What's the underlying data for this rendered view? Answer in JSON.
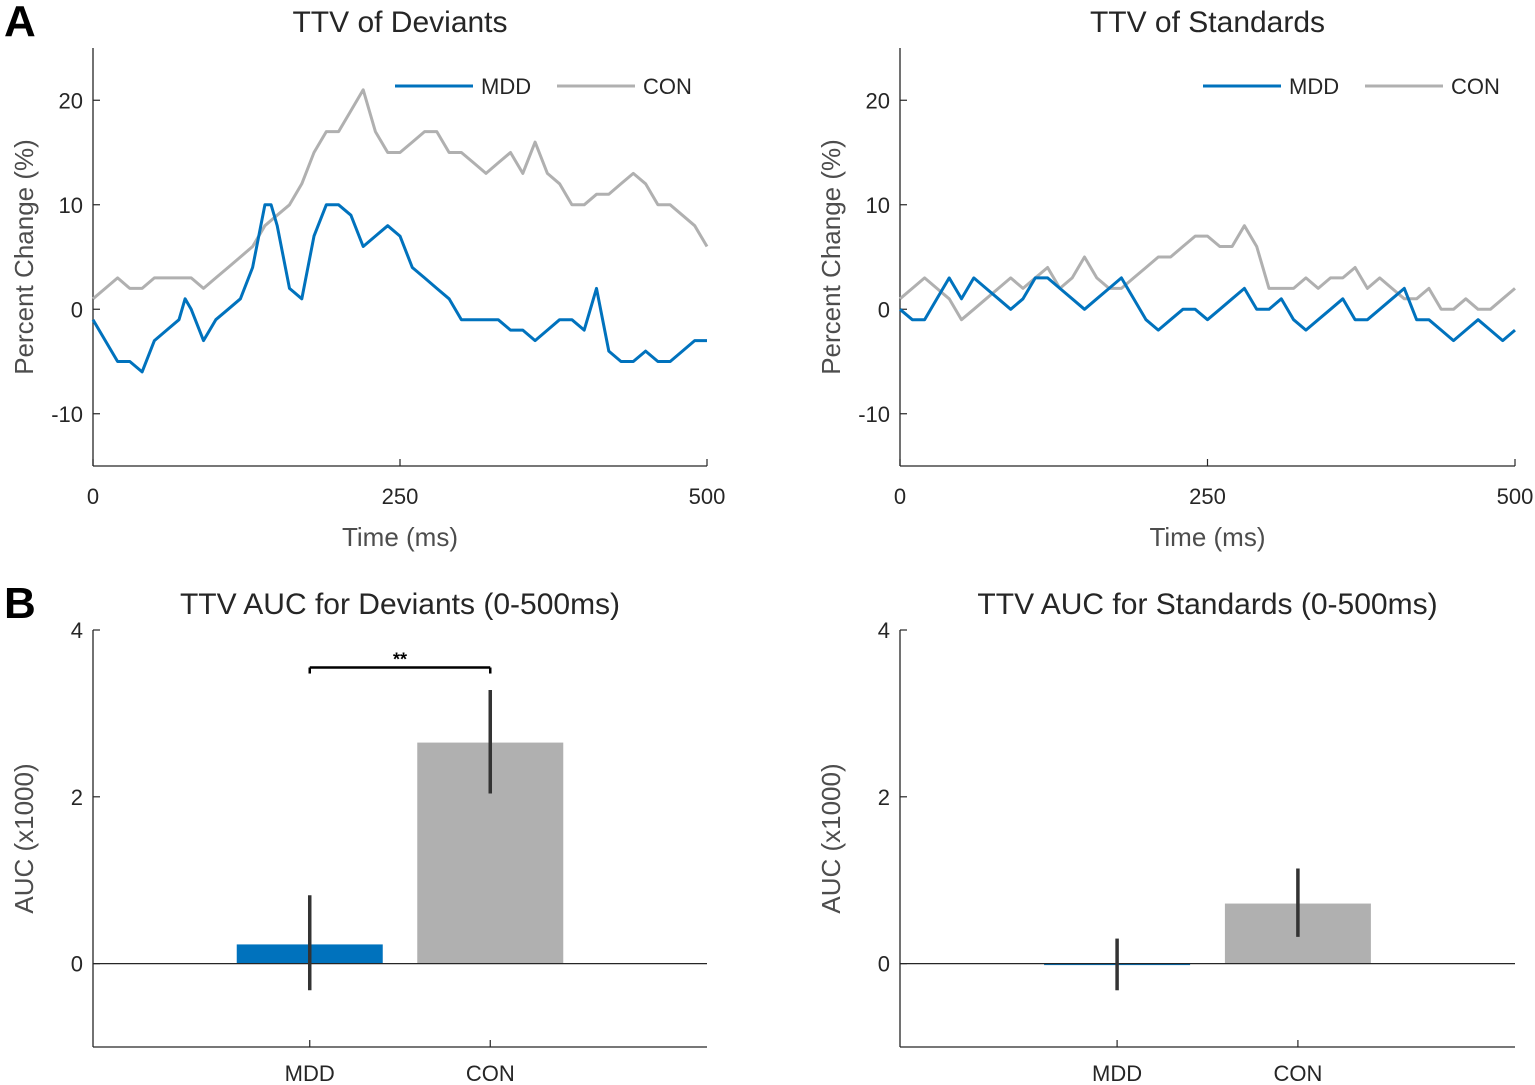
{
  "colors": {
    "mdd": "#0072bd",
    "con": "#b0b0b0",
    "axis": "#262626",
    "err": "#333333"
  },
  "panel_labels": [
    "A",
    "B"
  ],
  "chart_data": [
    {
      "type": "line",
      "id": "ttv-dev",
      "title": "TTV of Deviants",
      "xlabel": "Time (ms)",
      "ylabel": "Percent Change (%)",
      "xlim": [
        0,
        500
      ],
      "ylim": [
        -15,
        25
      ],
      "xticks": [
        0,
        250,
        500
      ],
      "yticks": [
        -10,
        0,
        10,
        20
      ],
      "legend": [
        "MDD",
        "CON"
      ],
      "legend_position": "top-right",
      "series": [
        {
          "name": "MDD",
          "color": "#0072bd",
          "x": [
            0,
            10,
            20,
            30,
            40,
            50,
            60,
            70,
            75,
            80,
            90,
            100,
            110,
            120,
            130,
            140,
            145,
            150,
            160,
            170,
            180,
            190,
            200,
            210,
            220,
            230,
            240,
            250,
            260,
            270,
            280,
            290,
            300,
            310,
            320,
            330,
            340,
            350,
            360,
            370,
            380,
            390,
            400,
            410,
            420,
            430,
            440,
            450,
            460,
            470,
            480,
            490,
            500
          ],
          "y": [
            -1,
            -3,
            -5,
            -5,
            -6,
            -3,
            -2,
            -1,
            1,
            0,
            -3,
            -1,
            0,
            1,
            4,
            10,
            10,
            8,
            2,
            1,
            7,
            10,
            10,
            9,
            6,
            7,
            8,
            7,
            4,
            3,
            2,
            1,
            -1,
            -1,
            -1,
            -1,
            -2,
            -2,
            -3,
            -2,
            -1,
            -1,
            -2,
            2,
            -4,
            -5,
            -5,
            -4,
            -5,
            -5,
            -4,
            -3,
            -3
          ]
        },
        {
          "name": "CON",
          "color": "#b0b0b0",
          "x": [
            0,
            10,
            20,
            30,
            40,
            50,
            60,
            70,
            80,
            90,
            100,
            110,
            120,
            130,
            140,
            150,
            160,
            170,
            180,
            190,
            200,
            210,
            220,
            230,
            240,
            250,
            260,
            270,
            280,
            290,
            300,
            310,
            320,
            330,
            340,
            350,
            360,
            370,
            380,
            390,
            400,
            410,
            420,
            430,
            440,
            450,
            460,
            470,
            480,
            490,
            500
          ],
          "y": [
            1,
            2,
            3,
            2,
            2,
            3,
            3,
            3,
            3,
            2,
            3,
            4,
            5,
            6,
            8,
            9,
            10,
            12,
            15,
            17,
            17,
            19,
            21,
            17,
            15,
            15,
            16,
            17,
            17,
            15,
            15,
            14,
            13,
            14,
            15,
            13,
            16,
            13,
            12,
            10,
            10,
            11,
            11,
            12,
            13,
            12,
            10,
            10,
            9,
            8,
            6
          ]
        }
      ]
    },
    {
      "type": "line",
      "id": "ttv-std",
      "title": "TTV of Standards",
      "xlabel": "Time (ms)",
      "ylabel": "Percent Change (%)",
      "xlim": [
        0,
        500
      ],
      "ylim": [
        -15,
        25
      ],
      "xticks": [
        0,
        250,
        500
      ],
      "yticks": [
        -10,
        0,
        10,
        20
      ],
      "legend": [
        "MDD",
        "CON"
      ],
      "legend_position": "top-right",
      "series": [
        {
          "name": "MDD",
          "color": "#0072bd",
          "x": [
            0,
            10,
            20,
            30,
            40,
            50,
            60,
            70,
            80,
            90,
            100,
            110,
            120,
            130,
            140,
            150,
            160,
            170,
            180,
            190,
            200,
            210,
            220,
            230,
            240,
            250,
            260,
            270,
            280,
            290,
            300,
            310,
            320,
            330,
            340,
            350,
            360,
            370,
            380,
            390,
            400,
            410,
            420,
            430,
            440,
            450,
            460,
            470,
            480,
            490,
            500
          ],
          "y": [
            0,
            -1,
            -1,
            1,
            3,
            1,
            3,
            2,
            1,
            0,
            1,
            3,
            3,
            2,
            1,
            0,
            1,
            2,
            3,
            1,
            -1,
            -2,
            -1,
            0,
            0,
            -1,
            0,
            1,
            2,
            0,
            0,
            1,
            -1,
            -2,
            -1,
            0,
            1,
            -1,
            -1,
            0,
            1,
            2,
            -1,
            -1,
            -2,
            -3,
            -2,
            -1,
            -2,
            -3,
            -2
          ]
        },
        {
          "name": "CON",
          "color": "#b0b0b0",
          "x": [
            0,
            10,
            20,
            30,
            40,
            50,
            60,
            70,
            80,
            90,
            100,
            110,
            120,
            130,
            140,
            150,
            160,
            170,
            180,
            190,
            200,
            210,
            220,
            230,
            240,
            250,
            260,
            270,
            280,
            290,
            300,
            310,
            320,
            330,
            340,
            350,
            360,
            370,
            380,
            390,
            400,
            410,
            420,
            430,
            440,
            450,
            460,
            470,
            480,
            490,
            500
          ],
          "y": [
            1,
            2,
            3,
            2,
            1,
            -1,
            0,
            1,
            2,
            3,
            2,
            3,
            4,
            2,
            3,
            5,
            3,
            2,
            2,
            3,
            4,
            5,
            5,
            6,
            7,
            7,
            6,
            6,
            8,
            6,
            2,
            2,
            2,
            3,
            2,
            3,
            3,
            4,
            2,
            3,
            2,
            1,
            1,
            2,
            0,
            0,
            1,
            0,
            0,
            1,
            2
          ]
        }
      ]
    },
    {
      "type": "bar",
      "id": "auc-dev",
      "title": "TTV AUC for Deviants (0-500ms)",
      "ylabel": "AUC (x1000)",
      "ylim": [
        -1,
        4
      ],
      "yticks": [
        0,
        2,
        4
      ],
      "categories": [
        "MDD",
        "CON"
      ],
      "values": [
        0.23,
        2.65
      ],
      "errors": [
        [
          -0.32,
          0.82
        ],
        [
          2.04,
          3.28
        ]
      ],
      "colors": [
        "#0072bd",
        "#b0b0b0"
      ],
      "significance": {
        "between": [
          "MDD",
          "CON"
        ],
        "label": "**",
        "y": 3.55
      }
    },
    {
      "type": "bar",
      "id": "auc-std",
      "title": "TTV AUC for Standards (0-500ms)",
      "ylabel": "AUC (x1000)",
      "ylim": [
        -1,
        4
      ],
      "yticks": [
        0,
        2,
        4
      ],
      "categories": [
        "MDD",
        "CON"
      ],
      "values": [
        0.0,
        0.72
      ],
      "errors": [
        [
          -0.32,
          0.3
        ],
        [
          0.32,
          1.14
        ]
      ],
      "colors": [
        "#0072bd",
        "#b0b0b0"
      ]
    }
  ]
}
